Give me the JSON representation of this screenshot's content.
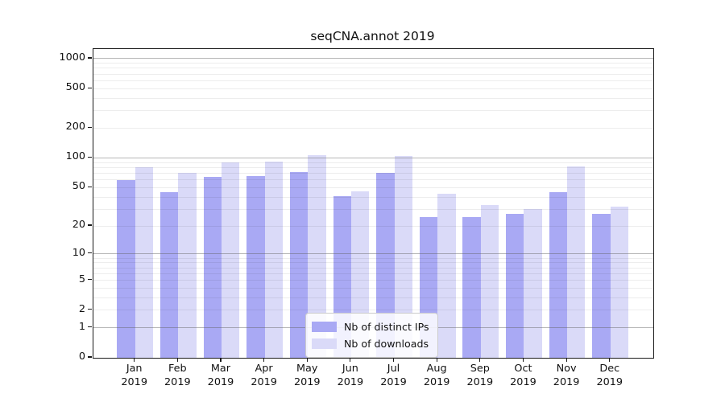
{
  "title": "seqCNA.annot 2019",
  "chart_data": {
    "type": "bar",
    "title": "seqCNA.annot 2019",
    "categories": [
      "Jan 2019",
      "Feb 2019",
      "Mar 2019",
      "Apr 2019",
      "May 2019",
      "Jun 2019",
      "Jul 2019",
      "Aug 2019",
      "Sep 2019",
      "Oct 2019",
      "Nov 2019",
      "Dec 2019"
    ],
    "series": [
      {
        "name": "Nb of distinct IPs",
        "color": "#a9a9f4",
        "values": [
          60,
          45,
          64,
          66,
          72,
          41,
          70,
          25,
          25,
          27,
          45,
          27
        ]
      },
      {
        "name": "Nb of downloads",
        "color": "#dadaf8",
        "values": [
          80,
          70,
          90,
          92,
          107,
          46,
          104,
          43,
          33,
          30,
          82,
          32
        ]
      }
    ],
    "yscale": "log1p",
    "ylim": [
      0,
      1200
    ],
    "ytick_labels": [
      1000,
      500,
      200,
      100,
      50,
      20,
      10,
      5,
      2,
      1,
      0
    ],
    "xlabel": "",
    "ylabel": "",
    "grid": "on",
    "legend_position": "lower-center"
  },
  "colors": {
    "bar_distinct_ips": "#a9a9f4",
    "bar_downloads": "#dadaf8",
    "grid_major": "#b4b4b4",
    "grid_minor": "#e9e9e9",
    "spine": "#1a1a1a"
  }
}
